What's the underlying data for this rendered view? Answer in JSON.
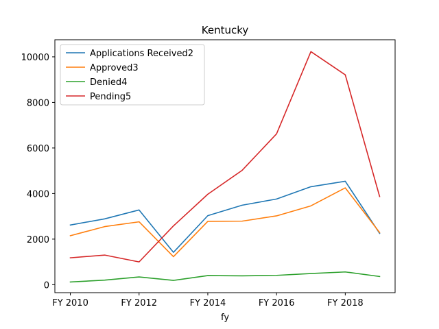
{
  "chart_data": {
    "type": "line",
    "title": "Kentucky",
    "xlabel": "fy",
    "ylabel": "",
    "x": [
      2010,
      2011,
      2012,
      2013,
      2014,
      2015,
      2016,
      2017,
      2018,
      2019
    ],
    "xticks": [
      {
        "value": 2010,
        "label": "FY 2010"
      },
      {
        "value": 2012,
        "label": "FY 2012"
      },
      {
        "value": 2014,
        "label": "FY 2014"
      },
      {
        "value": 2016,
        "label": "FY 2016"
      },
      {
        "value": 2018,
        "label": "FY 2018"
      }
    ],
    "xlim": [
      2009.55,
      2019.45
    ],
    "yticks": [
      0,
      2000,
      4000,
      6000,
      8000,
      10000
    ],
    "ylim": [
      -350,
      10750
    ],
    "legend_position": "upper-left",
    "series": [
      {
        "name": "Applications Received2",
        "color": "#1f77b4",
        "values": [
          2620,
          2890,
          3280,
          1420,
          3030,
          3490,
          3760,
          4300,
          4540,
          2250
        ]
      },
      {
        "name": "Approved3",
        "color": "#ff7f0e",
        "values": [
          2150,
          2550,
          2760,
          1230,
          2780,
          2790,
          3020,
          3460,
          4250,
          2290
        ]
      },
      {
        "name": "Denied4",
        "color": "#2ca02c",
        "values": [
          120,
          200,
          340,
          190,
          400,
          390,
          410,
          490,
          560,
          360
        ]
      },
      {
        "name": "Pending5",
        "color": "#d62728",
        "values": [
          1180,
          1300,
          1000,
          2580,
          3970,
          5020,
          6620,
          10230,
          9210,
          3870
        ]
      }
    ]
  }
}
